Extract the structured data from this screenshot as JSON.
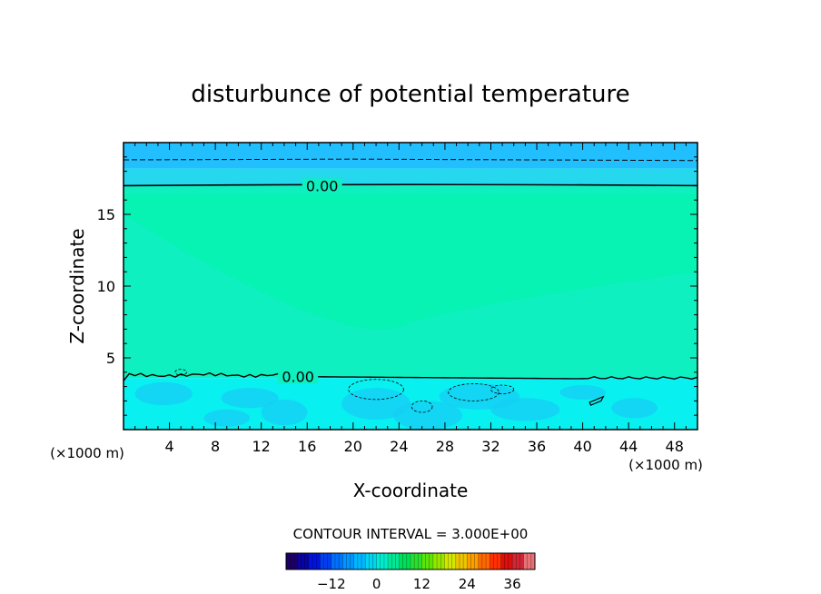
{
  "chart_data": {
    "type": "heatmap",
    "title": "disturbunce of potential temperature",
    "xlabel": "X-coordinate",
    "ylabel": "Z-coordinate",
    "x_unit_left": "(×1000 m)",
    "x_unit_right": "(×1000 m)",
    "xlim": [
      0,
      50
    ],
    "ylim": [
      0,
      20
    ],
    "x_ticks": [
      4,
      8,
      12,
      16,
      20,
      24,
      28,
      32,
      36,
      40,
      44,
      48
    ],
    "y_ticks": [
      5,
      10,
      15
    ],
    "contours": [
      {
        "level": "0.00",
        "style": "solid",
        "label_x": 17.3,
        "z": 17.0
      },
      {
        "level": "0.00",
        "style": "solid",
        "label_x": 15.2,
        "z": 3.7
      },
      {
        "level": "-3.00",
        "style": "dashed",
        "z": 18.8
      }
    ],
    "field_bands": [
      {
        "z_from": 18.2,
        "z_to": 20.0,
        "color": "#22bfff"
      },
      {
        "z_from": 17.0,
        "z_to": 18.2,
        "color": "#25d8ee"
      },
      {
        "z_from": 3.6,
        "z_to": 17.0,
        "color": "#0ef0c0"
      },
      {
        "z_from": 0.0,
        "z_to": 3.6,
        "color": "#08f0f0"
      }
    ],
    "contour_interval": "CONTOUR INTERVAL = 3.000E+00",
    "colorbar": {
      "min": -24,
      "max": 42,
      "step": 3,
      "tick_labels": [
        "-12",
        "0",
        "12",
        "24",
        "36"
      ],
      "tick_values": [
        -12,
        0,
        12,
        24,
        36
      ]
    }
  }
}
